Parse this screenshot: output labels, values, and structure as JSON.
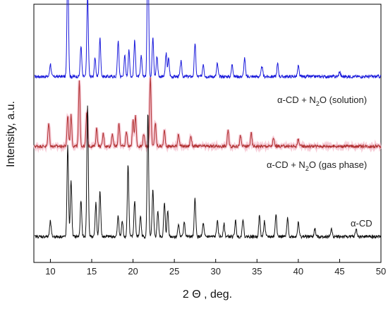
{
  "chart_data": {
    "type": "line",
    "xlabel": "2 Θ , deg.",
    "ylabel": "Intensity, a.u.",
    "xlim": [
      8,
      50
    ],
    "x_ticks": [
      10,
      15,
      20,
      25,
      30,
      35,
      40,
      45,
      50
    ],
    "y_ticks_visible": false,
    "grid": false,
    "legend": "none",
    "series": [
      {
        "label_prefix": "α-CD + N",
        "label_sub": "2",
        "label_suffix": "O (solution)",
        "color": "#1a1adb",
        "baseline": 0.72,
        "peaks": [
          [
            10.0,
            0.05
          ],
          [
            12.1,
            0.45
          ],
          [
            13.7,
            0.12
          ],
          [
            14.5,
            0.32
          ],
          [
            15.4,
            0.07
          ],
          [
            16.0,
            0.15
          ],
          [
            18.2,
            0.14
          ],
          [
            19.0,
            0.08
          ],
          [
            19.5,
            0.1
          ],
          [
            20.2,
            0.14
          ],
          [
            21.0,
            0.08
          ],
          [
            21.8,
            0.55
          ],
          [
            22.4,
            0.15
          ],
          [
            22.9,
            0.08
          ],
          [
            24.0,
            0.09
          ],
          [
            24.3,
            0.07
          ],
          [
            25.8,
            0.06
          ],
          [
            27.5,
            0.13
          ],
          [
            28.5,
            0.05
          ],
          [
            30.2,
            0.05
          ],
          [
            32.0,
            0.05
          ],
          [
            33.5,
            0.07
          ],
          [
            35.6,
            0.04
          ],
          [
            37.5,
            0.05
          ],
          [
            40.0,
            0.04
          ],
          [
            45.0,
            0.02
          ]
        ]
      },
      {
        "label_prefix": "α-CD + N",
        "label_sub": "2",
        "label_suffix": "O (gas phase)",
        "color": "#b03030",
        "halo_color": "#f4b8c8",
        "baseline": 0.45,
        "peaks": [
          [
            9.8,
            0.09
          ],
          [
            12.1,
            0.12
          ],
          [
            12.5,
            0.12
          ],
          [
            13.5,
            0.25
          ],
          [
            14.4,
            0.13
          ],
          [
            15.6,
            0.07
          ],
          [
            16.4,
            0.05
          ],
          [
            17.5,
            0.05
          ],
          [
            18.3,
            0.09
          ],
          [
            19.2,
            0.06
          ],
          [
            20.0,
            0.1
          ],
          [
            20.3,
            0.12
          ],
          [
            21.3,
            0.05
          ],
          [
            22.1,
            0.27
          ],
          [
            22.7,
            0.09
          ],
          [
            23.8,
            0.06
          ],
          [
            25.5,
            0.05
          ],
          [
            27.0,
            0.04
          ],
          [
            31.5,
            0.06
          ],
          [
            33.0,
            0.04
          ],
          [
            34.3,
            0.05
          ],
          [
            37.0,
            0.03
          ],
          [
            40.0,
            0.03
          ]
        ]
      },
      {
        "label": "α-CD",
        "color": "#111111",
        "baseline": 0.1,
        "peaks": [
          [
            10.0,
            0.06
          ],
          [
            12.1,
            0.35
          ],
          [
            12.5,
            0.22
          ],
          [
            13.7,
            0.14
          ],
          [
            14.5,
            0.51
          ],
          [
            15.5,
            0.13
          ],
          [
            16.0,
            0.18
          ],
          [
            18.2,
            0.08
          ],
          [
            18.7,
            0.06
          ],
          [
            19.4,
            0.28
          ],
          [
            20.2,
            0.14
          ],
          [
            20.9,
            0.08
          ],
          [
            21.8,
            0.48
          ],
          [
            22.4,
            0.18
          ],
          [
            23.0,
            0.1
          ],
          [
            23.8,
            0.13
          ],
          [
            24.2,
            0.1
          ],
          [
            25.5,
            0.05
          ],
          [
            26.2,
            0.06
          ],
          [
            27.5,
            0.15
          ],
          [
            28.5,
            0.05
          ],
          [
            30.2,
            0.06
          ],
          [
            31.0,
            0.05
          ],
          [
            32.4,
            0.06
          ],
          [
            33.3,
            0.07
          ],
          [
            35.3,
            0.08
          ],
          [
            35.9,
            0.06
          ],
          [
            37.3,
            0.09
          ],
          [
            38.7,
            0.07
          ],
          [
            40.0,
            0.06
          ],
          [
            42.0,
            0.03
          ],
          [
            44.0,
            0.03
          ],
          [
            47.0,
            0.03
          ]
        ]
      }
    ]
  }
}
